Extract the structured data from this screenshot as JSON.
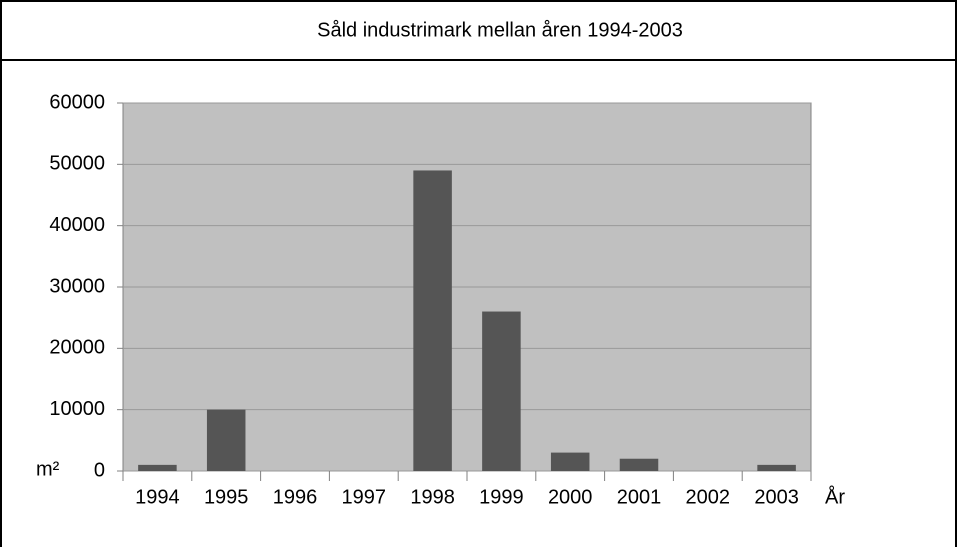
{
  "chart_data": {
    "type": "bar",
    "title": "Såld industrimark mellan åren 1994-2003",
    "y_label": "m²",
    "x_label": "År",
    "categories": [
      "1994",
      "1995",
      "1996",
      "1997",
      "1998",
      "1999",
      "2000",
      "2001",
      "2002",
      "2003"
    ],
    "values": [
      1000,
      10000,
      0,
      0,
      49000,
      26000,
      3000,
      2000,
      0,
      1000
    ],
    "color": "#555555",
    "background": "#c0c0c0",
    "ylim": [
      0,
      60000
    ],
    "yticks": [
      0,
      10000,
      20000,
      30000,
      40000,
      50000,
      60000
    ],
    "grid": true
  }
}
